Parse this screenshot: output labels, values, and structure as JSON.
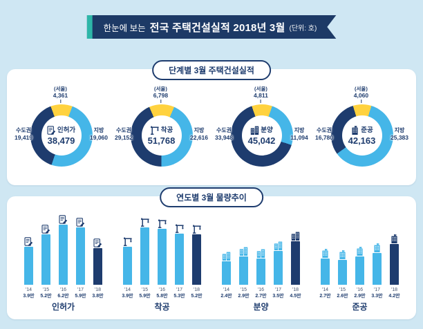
{
  "colors": {
    "navy": "#1e3c6e",
    "blue": "#45b6e8",
    "yellow": "#ffd23f",
    "teal": "#2eb6a8",
    "bg": "#cfe7f3"
  },
  "header": {
    "prefix": "한눈에 보는",
    "title": "전국 주택건설실적 2018년 3월",
    "unit": "(단위: 호)"
  },
  "stage_section": {
    "header": "단계별 3월 주택건설실적",
    "labels": {
      "seoul": "(서울)",
      "capital": "수도권",
      "local": "지방"
    },
    "charts": [
      {
        "name": "인허가",
        "total_text": "38,479",
        "capital_text": "19,419",
        "seoul_text": "4,361",
        "local_text": "19,060"
      },
      {
        "name": "착공",
        "total_text": "51,768",
        "capital_text": "29,152",
        "seoul_text": "6,798",
        "local_text": "22,616"
      },
      {
        "name": "분양",
        "total_text": "45,042",
        "capital_text": "33,948",
        "seoul_text": "4,811",
        "local_text": "11,094"
      },
      {
        "name": "준공",
        "total_text": "42,163",
        "capital_text": "16,780",
        "seoul_text": "4,060",
        "local_text": "25,383"
      }
    ]
  },
  "trend_section": {
    "header": "연도별 3월 물량추이"
  },
  "chart_data": [
    {
      "type": "pie",
      "title": "단계별 3월 주택건설실적",
      "unit": "호",
      "donuts": [
        {
          "label": "인허가",
          "icon": "permit",
          "total": 38479,
          "capital_total": 19419,
          "slices": [
            {
              "name": "(서울)",
              "value": 4361,
              "color": "#ffd23f"
            },
            {
              "name": "지방",
              "value": 19060,
              "color": "#45b6e8"
            },
            {
              "name": "수도권(서울 외)",
              "value": 15058,
              "color": "#1e3c6e"
            }
          ]
        },
        {
          "label": "착공",
          "icon": "crane",
          "total": 51768,
          "capital_total": 29152,
          "slices": [
            {
              "name": "(서울)",
              "value": 6798,
              "color": "#ffd23f"
            },
            {
              "name": "지방",
              "value": 22616,
              "color": "#45b6e8"
            },
            {
              "name": "수도권(서울 외)",
              "value": 22354,
              "color": "#1e3c6e"
            }
          ]
        },
        {
          "label": "분양",
          "icon": "building",
          "total": 45042,
          "capital_total": 33948,
          "slices": [
            {
              "name": "(서울)",
              "value": 4811,
              "color": "#ffd23f"
            },
            {
              "name": "지방",
              "value": 11094,
              "color": "#45b6e8"
            },
            {
              "name": "수도권(서울 외)",
              "value": 29137,
              "color": "#1e3c6e"
            }
          ]
        },
        {
          "label": "준공",
          "icon": "done",
          "total": 42163,
          "capital_total": 16780,
          "slices": [
            {
              "name": "(서울)",
              "value": 4060,
              "color": "#ffd23f"
            },
            {
              "name": "지방",
              "value": 25383,
              "color": "#45b6e8"
            },
            {
              "name": "수도권(서울 외)",
              "value": 12720,
              "color": "#1e3c6e"
            }
          ]
        }
      ]
    },
    {
      "type": "bar",
      "title": "연도별 3월 물량추이",
      "categories": [
        "'14",
        "'15",
        "'16",
        "'17",
        "'18"
      ],
      "unit": "만 호",
      "ylim": [
        0,
        6.5
      ],
      "highlight_last": true,
      "series": [
        {
          "name": "인허가",
          "icon": "permit",
          "values": [
            3.9,
            5.2,
            6.2,
            5.9,
            3.8
          ],
          "labels": [
            "3.9만",
            "5.2만",
            "6.2만",
            "5.9만",
            "3.8만"
          ]
        },
        {
          "name": "착공",
          "icon": "crane",
          "values": [
            3.9,
            5.9,
            5.8,
            5.3,
            5.2
          ],
          "labels": [
            "3.9만",
            "5.9만",
            "5.8만",
            "5.3만",
            "5.2만"
          ]
        },
        {
          "name": "분양",
          "icon": "building",
          "values": [
            2.4,
            2.9,
            2.7,
            3.5,
            4.5
          ],
          "labels": [
            "2.4만",
            "2.9만",
            "2.7만",
            "3.5만",
            "4.5만"
          ]
        },
        {
          "name": "준공",
          "icon": "done",
          "values": [
            2.7,
            2.6,
            2.9,
            3.3,
            4.2
          ],
          "labels": [
            "2.7만",
            "2.6만",
            "2.9만",
            "3.3만",
            "4.2만"
          ]
        }
      ]
    }
  ]
}
